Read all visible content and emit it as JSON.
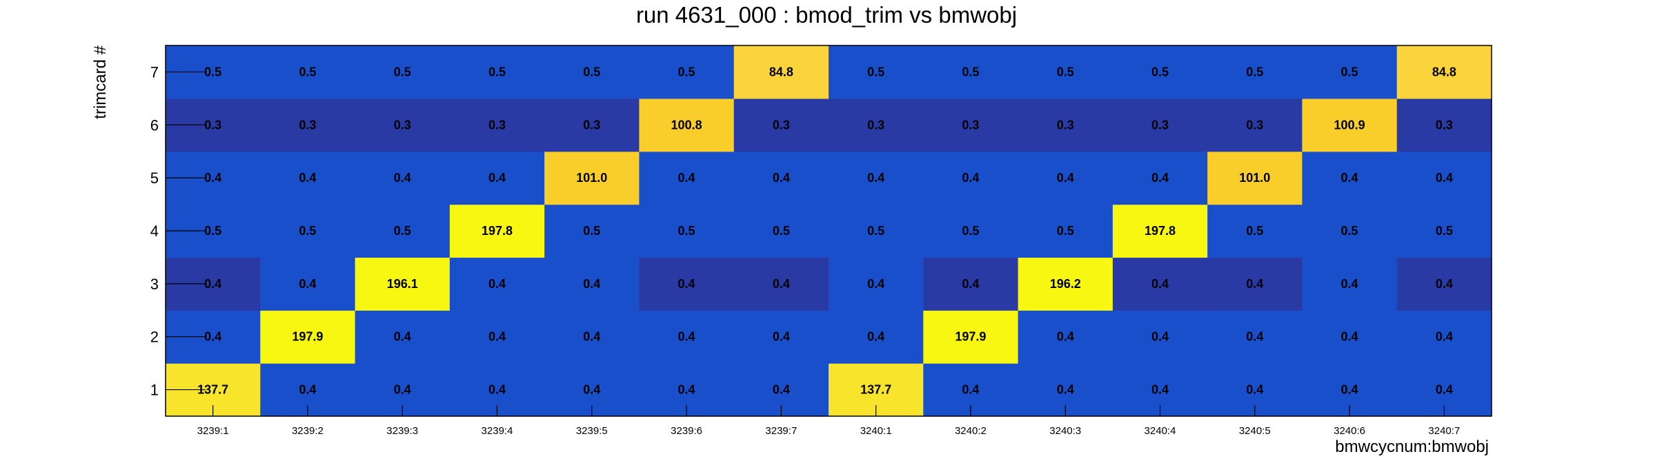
{
  "chart_data": {
    "type": "heatmap",
    "title": "run 4631_000 : bmod_trim vs bmwobj",
    "xlabel": "bmwcycnum:bmwobj",
    "ylabel": "trimcard #",
    "x_categories": [
      "3239:1",
      "3239:2",
      "3239:3",
      "3239:4",
      "3239:5",
      "3239:6",
      "3239:7",
      "3240:1",
      "3240:2",
      "3240:3",
      "3240:4",
      "3240:5",
      "3240:6",
      "3240:7"
    ],
    "y_categories": [
      "1",
      "2",
      "3",
      "4",
      "5",
      "6",
      "7"
    ],
    "values": [
      [
        "137.7",
        "0.4",
        "0.4",
        "0.4",
        "0.4",
        "0.4",
        "0.4",
        "137.7",
        "0.4",
        "0.4",
        "0.4",
        "0.4",
        "0.4",
        "0.4"
      ],
      [
        "0.4",
        "197.9",
        "0.4",
        "0.4",
        "0.4",
        "0.4",
        "0.4",
        "0.4",
        "197.9",
        "0.4",
        "0.4",
        "0.4",
        "0.4",
        "0.4"
      ],
      [
        "0.4",
        "0.4",
        "196.1",
        "0.4",
        "0.4",
        "0.4",
        "0.4",
        "0.4",
        "0.4",
        "196.2",
        "0.4",
        "0.4",
        "0.4",
        "0.4"
      ],
      [
        "0.5",
        "0.5",
        "0.5",
        "197.8",
        "0.5",
        "0.5",
        "0.5",
        "0.5",
        "0.5",
        "0.5",
        "197.8",
        "0.5",
        "0.5",
        "0.5"
      ],
      [
        "0.4",
        "0.4",
        "0.4",
        "0.4",
        "101.0",
        "0.4",
        "0.4",
        "0.4",
        "0.4",
        "0.4",
        "0.4",
        "101.0",
        "0.4",
        "0.4"
      ],
      [
        "0.3",
        "0.3",
        "0.3",
        "0.3",
        "0.3",
        "100.8",
        "0.3",
        "0.3",
        "0.3",
        "0.3",
        "0.3",
        "0.3",
        "100.9",
        "0.3"
      ],
      [
        "0.5",
        "0.5",
        "0.5",
        "0.5",
        "0.5",
        "0.5",
        "84.8",
        "0.5",
        "0.5",
        "0.5",
        "0.5",
        "0.5",
        "0.5",
        "84.8"
      ]
    ],
    "dark_cells": [
      [
        2,
        0
      ],
      [
        2,
        5
      ],
      [
        2,
        6
      ],
      [
        2,
        8
      ],
      [
        2,
        10
      ],
      [
        2,
        11
      ],
      [
        2,
        13
      ],
      [
        5,
        0
      ],
      [
        5,
        1
      ],
      [
        5,
        2
      ],
      [
        5,
        3
      ],
      [
        5,
        4
      ],
      [
        5,
        6
      ],
      [
        5,
        7
      ],
      [
        5,
        8
      ],
      [
        5,
        9
      ],
      [
        5,
        10
      ],
      [
        5,
        11
      ],
      [
        5,
        13
      ]
    ],
    "colors": {
      "low": "#1a4fcc",
      "low_dark": "#2a3aa5",
      "high_100": "#f9ce2b",
      "high_85": "#fbd33a",
      "high_137": "#f7e42b",
      "high_197": "#f7f711"
    }
  }
}
